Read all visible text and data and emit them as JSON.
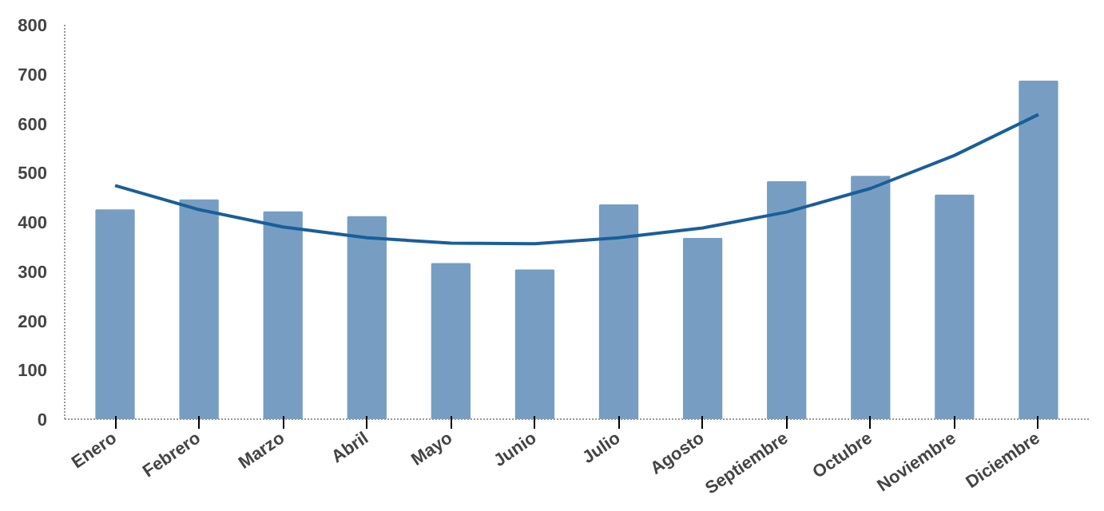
{
  "chart_data": {
    "type": "bar",
    "categories": [
      "Enero",
      "Febrero",
      "Marzo",
      "Abril",
      "Mayo",
      "Junio",
      "Julio",
      "Agosto",
      "Septiembre",
      "Octubre",
      "Noviembre",
      "Diciembre"
    ],
    "series": [
      {
        "color": "#779ec2",
        "values": [
          424,
          444,
          420,
          410,
          315,
          302,
          434,
          366,
          481,
          492,
          454,
          685
        ]
      },
      {
        "type": "line",
        "color": "#1a5e9a",
        "values": [
          474,
          425,
          390,
          368,
          357,
          356,
          368,
          388,
          420,
          468,
          535,
          618
        ]
      }
    ],
    "ylim": [
      0,
      800
    ],
    "yticks": [
      0,
      100,
      200,
      300,
      400,
      500,
      600,
      700,
      800
    ],
    "grid": false
  }
}
